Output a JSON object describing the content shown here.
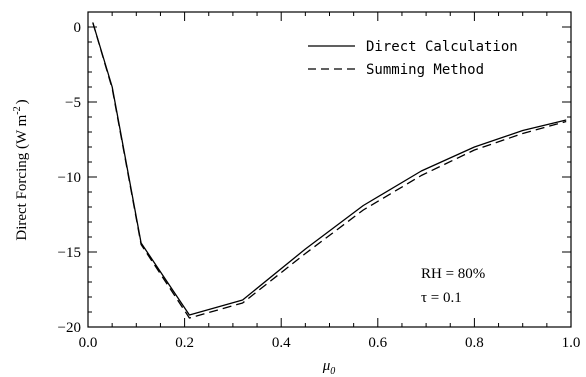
{
  "chart_data": {
    "type": "line",
    "xlabel": "μ",
    "xlabel_sub": "0",
    "ylabel": "Direct Forcing (W m",
    "ylabel_sup": "-2",
    "ylabel_close": ")",
    "xlim": [
      0.0,
      1.0
    ],
    "ylim": [
      -20,
      1
    ],
    "x_ticks": [
      0.0,
      0.2,
      0.4,
      0.6,
      0.8,
      1.0
    ],
    "x_tick_labels": [
      "0.0",
      "0.2",
      "0.4",
      "0.6",
      "0.8",
      "1.0"
    ],
    "y_ticks": [
      0,
      -5,
      -10,
      -15,
      -20
    ],
    "y_tick_labels": [
      "0",
      "−5",
      "−10",
      "−15",
      "−20"
    ],
    "legend_position": "top-right",
    "series": [
      {
        "name": "Direct Calculation",
        "style": "solid",
        "x": [
          0.01,
          0.05,
          0.11,
          0.21,
          0.32,
          0.45,
          0.57,
          0.69,
          0.8,
          0.9,
          0.99
        ],
        "y": [
          0.3,
          -4.0,
          -14.4,
          -19.2,
          -18.2,
          -14.8,
          -11.9,
          -9.6,
          -8.0,
          -6.9,
          -6.2
        ]
      },
      {
        "name": "Summing Method",
        "style": "dashed",
        "x": [
          0.01,
          0.05,
          0.11,
          0.21,
          0.32,
          0.45,
          0.57,
          0.69,
          0.8,
          0.9,
          0.99
        ],
        "y": [
          0.3,
          -4.1,
          -14.5,
          -19.4,
          -18.4,
          -15.1,
          -12.2,
          -9.9,
          -8.2,
          -7.1,
          -6.3
        ]
      }
    ],
    "annotations": [
      "RH = 80%",
      "τ = 0.1"
    ]
  }
}
